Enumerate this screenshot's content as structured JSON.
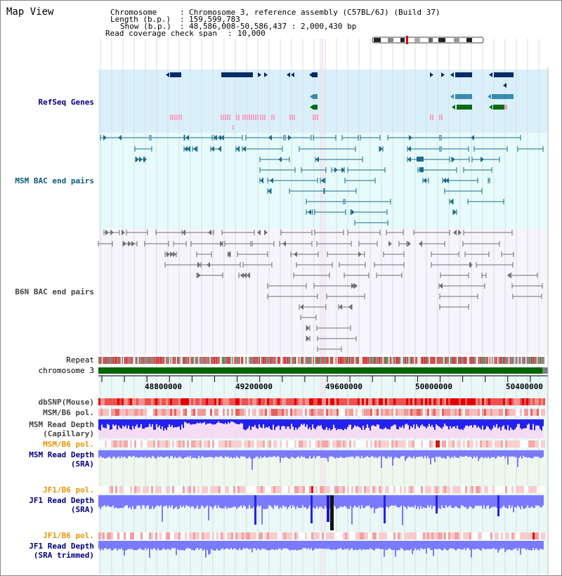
{
  "title": "Map View",
  "header": {
    "chromosome_key": "Chromosome",
    "chromosome_val": "Chromosome 3, reference assembly (C57BL/6J) (Build 37)",
    "length_key": "Length (b.p.)",
    "length_val": "159,599,783",
    "show_key": "Show (b.p.)",
    "show_val": "48,586,008-50,586,437 : 2,000,430 bp",
    "coverage_key": "Read coverage check span",
    "coverage_val": "10,000"
  },
  "tracks": {
    "refseq": "RefSeq Genes",
    "msm_bac": "MSM BAC end pairs",
    "b6n_bac": "B6N BAC end pairs",
    "repeat": "Repeat",
    "chromosome": "chromosome 3",
    "dbsnp": "dbSNP(Mouse)",
    "msm_pol1": "MSM/B6 pol.",
    "msm_depth_cap_1": "MSM Read Depth",
    "msm_depth_cap_2": "(Capillary)",
    "msm_pol2": "MSM/B6 pol.",
    "msm_depth_sra_1": "MSM Read Depth",
    "msm_depth_sra_2": "(SRA)",
    "jf1_pol1": "JF1/B6 pol.",
    "jf1_depth_sra_1": "JF1 Read Depth",
    "jf1_depth_sra_2": "(SRA)",
    "jf1_pol2": "JF1/B6 pol.",
    "jf1_depth_trim_1": "JF1 Read Depth",
    "jf1_depth_trim_2": "(SRA trimmed)"
  },
  "axis": {
    "ticks": [
      "48800000",
      "49200000",
      "49600000",
      "50000000",
      "50400000"
    ]
  },
  "colors": {
    "refseq_bg": "#d9f0fa",
    "msm_bg": "#e6fbfb",
    "b6n_bg": "#f5f5fb",
    "navy": "#0a2a66",
    "steel": "#3a8ab0",
    "green": "#0b6b16",
    "pink": "#f7a3c6",
    "teal": "#1f6b8a",
    "gray": "#707070",
    "chrom_green": "#006400",
    "depth_blue": "#2222ee",
    "depth_light": "#7a7aff",
    "snp_red": "#ee4444",
    "pol_pink": "#f5b5b5",
    "label_blue": "#000080",
    "label_teal": "#0b5c7a",
    "label_orange": "#e69500"
  }
}
